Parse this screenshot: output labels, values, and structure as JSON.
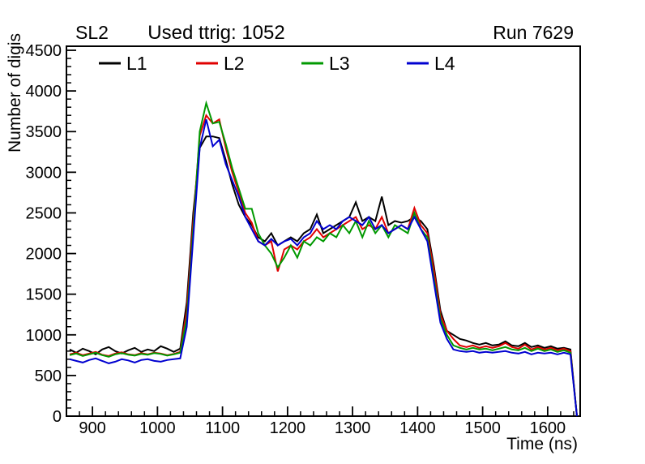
{
  "header": {
    "left": "SL2",
    "center": "Used ttrig: 1052",
    "right": "Run 7629"
  },
  "axes": {
    "xlabel": "Time (ns)",
    "ylabel": "Number of digis",
    "xticks": [
      900,
      1000,
      1100,
      1200,
      1300,
      1400,
      1500,
      1600
    ],
    "yticks": [
      0,
      500,
      1000,
      1500,
      2000,
      2500,
      3000,
      3500,
      4000,
      4500
    ],
    "x_minor_step": 20,
    "y_minor_step": 100
  },
  "legend": {
    "entries": [
      {
        "label": "L1",
        "color": "#000000"
      },
      {
        "label": "L2",
        "color": "#e00000"
      },
      {
        "label": "L3",
        "color": "#009900"
      },
      {
        "label": "L4",
        "color": "#0000d0"
      }
    ]
  },
  "chart_data": {
    "type": "line",
    "title": "Used ttrig: 1052",
    "subtitle_left": "SL2",
    "subtitle_right": "Run 7629",
    "xlabel": "Time (ns)",
    "ylabel": "Number of digis",
    "xlim": [
      860,
      1650
    ],
    "ylim": [
      0,
      4550
    ],
    "grid": false,
    "legend_position": "top",
    "x": [
      865,
      875,
      885,
      895,
      905,
      915,
      925,
      935,
      945,
      955,
      965,
      975,
      985,
      995,
      1005,
      1015,
      1025,
      1035,
      1045,
      1055,
      1065,
      1075,
      1085,
      1095,
      1105,
      1115,
      1125,
      1135,
      1145,
      1155,
      1165,
      1175,
      1185,
      1195,
      1205,
      1215,
      1225,
      1235,
      1245,
      1255,
      1265,
      1275,
      1285,
      1295,
      1305,
      1315,
      1325,
      1335,
      1345,
      1355,
      1365,
      1375,
      1385,
      1395,
      1405,
      1415,
      1425,
      1435,
      1445,
      1455,
      1465,
      1475,
      1485,
      1495,
      1505,
      1515,
      1525,
      1535,
      1545,
      1555,
      1565,
      1575,
      1585,
      1595,
      1605,
      1615,
      1625,
      1635,
      1645
    ],
    "series": [
      {
        "name": "L1",
        "color": "#000000",
        "values": [
          820,
          780,
          830,
          800,
          760,
          820,
          850,
          800,
          770,
          810,
          840,
          790,
          820,
          800,
          860,
          830,
          790,
          830,
          1400,
          2500,
          3300,
          3440,
          3440,
          3420,
          3150,
          2850,
          2600,
          2450,
          2350,
          2200,
          2150,
          2250,
          2100,
          2150,
          2200,
          2150,
          2250,
          2300,
          2480,
          2250,
          2300,
          2350,
          2400,
          2450,
          2630,
          2400,
          2450,
          2400,
          2700,
          2350,
          2400,
          2380,
          2400,
          2450,
          2400,
          2300,
          1850,
          1300,
          1050,
          1000,
          950,
          930,
          900,
          880,
          900,
          870,
          880,
          920,
          870,
          860,
          900,
          850,
          870,
          840,
          860,
          830,
          840,
          820,
          0
        ]
      },
      {
        "name": "L2",
        "color": "#e00000",
        "values": [
          760,
          780,
          750,
          770,
          790,
          755,
          740,
          770,
          785,
          760,
          750,
          775,
          760,
          780,
          770,
          750,
          765,
          790,
          1300,
          2400,
          3450,
          3700,
          3600,
          3650,
          3300,
          3000,
          2750,
          2500,
          2380,
          2150,
          2100,
          2150,
          1780,
          2050,
          2100,
          2050,
          2150,
          2200,
          2300,
          2200,
          2250,
          2300,
          2350,
          2400,
          2450,
          2300,
          2350,
          2300,
          2450,
          2250,
          2300,
          2350,
          2300,
          2560,
          2350,
          2250,
          1800,
          1250,
          1050,
          950,
          870,
          850,
          870,
          840,
          860,
          840,
          860,
          900,
          850,
          830,
          880,
          820,
          850,
          820,
          840,
          810,
          830,
          800,
          0
        ]
      },
      {
        "name": "L3",
        "color": "#009900",
        "values": [
          750,
          770,
          740,
          760,
          780,
          750,
          730,
          760,
          775,
          755,
          745,
          765,
          755,
          775,
          765,
          745,
          760,
          780,
          1200,
          2300,
          3500,
          3850,
          3600,
          3620,
          3350,
          3050,
          2800,
          2550,
          2550,
          2250,
          2100,
          2000,
          1830,
          1950,
          2100,
          1950,
          2150,
          2100,
          2200,
          2150,
          2250,
          2200,
          2350,
          2250,
          2400,
          2200,
          2400,
          2250,
          2350,
          2200,
          2350,
          2300,
          2250,
          2500,
          2300,
          2200,
          1700,
          1200,
          1000,
          870,
          840,
          820,
          840,
          820,
          830,
          810,
          830,
          850,
          820,
          810,
          840,
          800,
          830,
          800,
          820,
          790,
          810,
          780,
          0
        ]
      },
      {
        "name": "L4",
        "color": "#0000d0",
        "values": [
          700,
          680,
          660,
          690,
          710,
          680,
          650,
          670,
          700,
          685,
          660,
          690,
          700,
          680,
          670,
          690,
          700,
          710,
          1100,
          2200,
          3300,
          3650,
          3320,
          3400,
          3100,
          2900,
          2700,
          2450,
          2300,
          2150,
          2100,
          2180,
          2100,
          2150,
          2180,
          2100,
          2200,
          2250,
          2400,
          2300,
          2350,
          2300,
          2400,
          2450,
          2400,
          2350,
          2450,
          2300,
          2350,
          2250,
          2300,
          2350,
          2300,
          2450,
          2300,
          2150,
          1650,
          1150,
          950,
          820,
          800,
          790,
          800,
          780,
          790,
          780,
          790,
          800,
          780,
          770,
          790,
          760,
          780,
          770,
          780,
          760,
          780,
          760,
          0
        ]
      }
    ]
  }
}
